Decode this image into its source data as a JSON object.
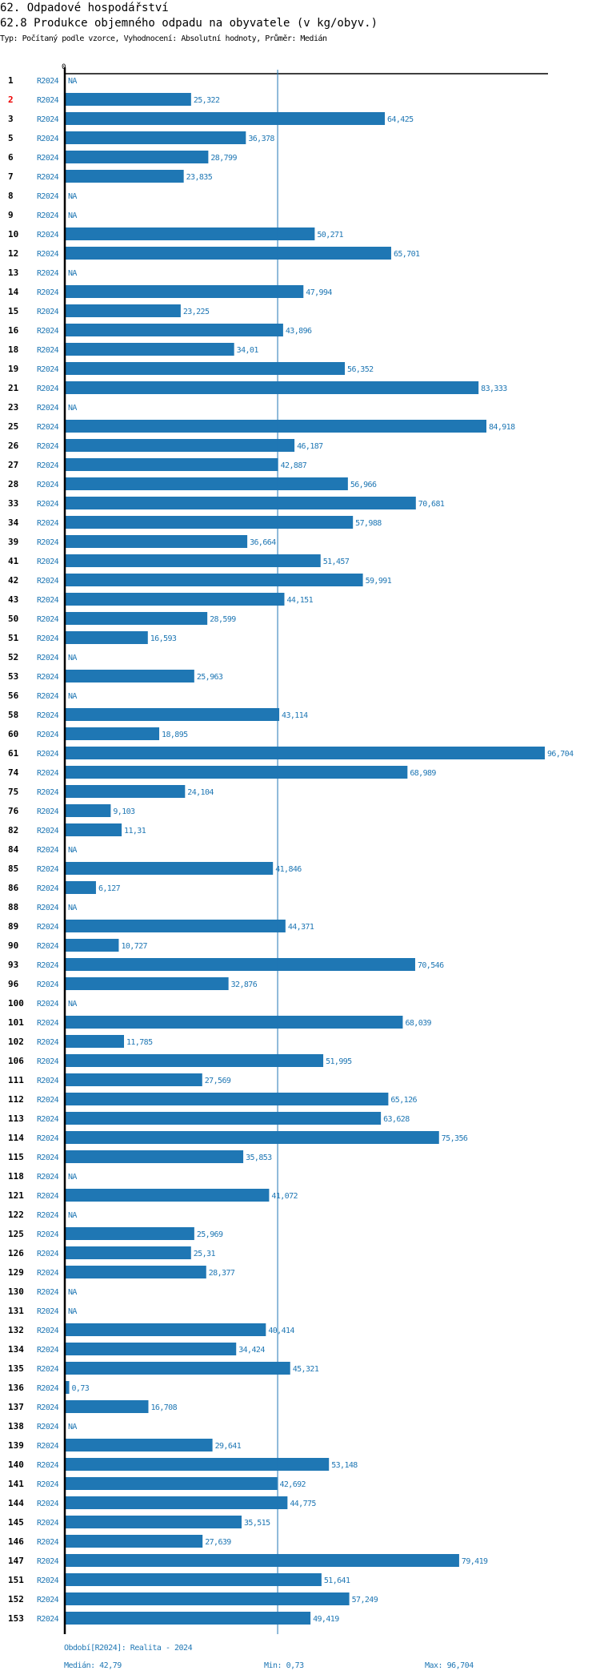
{
  "header": {
    "section_title": "62. Odpadové hospodářství",
    "chart_title": "62.8 Produkce objemného odpadu na obyvatele (v kg/obyv.)",
    "subtitle": "Typ: Počítaný podle vzorce, Vyhodnocení: Absolutní hodnoty, Průměr: Medián"
  },
  "colors": {
    "bar": "#1f77b4",
    "highlight_label": "#ee0000",
    "axis": "#000000",
    "median_line": "#1f77b4"
  },
  "chart_data": {
    "type": "bar",
    "orientation": "horizontal",
    "title": "62.8 Produkce objemného odpadu na obyvatele (v kg/obyv.)",
    "xlabel": "",
    "ylabel": "",
    "x_tick_labels": [
      "0"
    ],
    "xlim": [
      0,
      96.704
    ],
    "grid": false,
    "legend": "none",
    "period_label": "R2024",
    "highlighted_category": "2",
    "median": 42.79,
    "categories": [
      "1",
      "2",
      "3",
      "5",
      "6",
      "7",
      "8",
      "9",
      "10",
      "12",
      "13",
      "14",
      "15",
      "16",
      "18",
      "19",
      "21",
      "23",
      "25",
      "26",
      "27",
      "28",
      "33",
      "34",
      "39",
      "41",
      "42",
      "43",
      "50",
      "51",
      "52",
      "53",
      "56",
      "58",
      "60",
      "61",
      "74",
      "75",
      "76",
      "82",
      "84",
      "85",
      "86",
      "88",
      "89",
      "90",
      "93",
      "96",
      "100",
      "101",
      "102",
      "106",
      "111",
      "112",
      "113",
      "114",
      "115",
      "118",
      "121",
      "122",
      "125",
      "126",
      "129",
      "130",
      "131",
      "132",
      "134",
      "135",
      "136",
      "137",
      "138",
      "139",
      "140",
      "141",
      "144",
      "145",
      "146",
      "147",
      "151",
      "152",
      "153"
    ],
    "values": [
      null,
      25.322,
      64.425,
      36.378,
      28.799,
      23.835,
      null,
      null,
      50.271,
      65.701,
      null,
      47.994,
      23.225,
      43.896,
      34.01,
      56.352,
      83.333,
      null,
      84.918,
      46.187,
      42.887,
      56.966,
      70.681,
      57.988,
      36.664,
      51.457,
      59.991,
      44.151,
      28.599,
      16.593,
      null,
      25.963,
      null,
      43.114,
      18.895,
      96.704,
      68.989,
      24.104,
      9.103,
      11.31,
      null,
      41.846,
      6.127,
      null,
      44.371,
      10.727,
      70.546,
      32.876,
      null,
      68.039,
      11.785,
      51.995,
      27.569,
      65.126,
      63.628,
      75.356,
      35.853,
      null,
      41.072,
      null,
      25.969,
      25.31,
      28.377,
      null,
      null,
      40.414,
      34.424,
      45.321,
      0.73,
      16.708,
      null,
      29.641,
      53.148,
      42.692,
      44.775,
      35.515,
      27.639,
      79.419,
      51.641,
      57.249,
      49.419
    ],
    "value_labels": [
      "NA",
      "25,322",
      "64,425",
      "36,378",
      "28,799",
      "23,835",
      "NA",
      "NA",
      "50,271",
      "65,701",
      "NA",
      "47,994",
      "23,225",
      "43,896",
      "34,01",
      "56,352",
      "83,333",
      "NA",
      "84,918",
      "46,187",
      "42,887",
      "56,966",
      "70,681",
      "57,988",
      "36,664",
      "51,457",
      "59,991",
      "44,151",
      "28,599",
      "16,593",
      "NA",
      "25,963",
      "NA",
      "43,114",
      "18,895",
      "96,704",
      "68,989",
      "24,104",
      "9,103",
      "11,31",
      "NA",
      "41,846",
      "6,127",
      "NA",
      "44,371",
      "10,727",
      "70,546",
      "32,876",
      "NA",
      "68,039",
      "11,785",
      "51,995",
      "27,569",
      "65,126",
      "63,628",
      "75,356",
      "35,853",
      "NA",
      "41,072",
      "NA",
      "25,969",
      "25,31",
      "28,377",
      "NA",
      "NA",
      "40,414",
      "34,424",
      "45,321",
      "0,73",
      "16,708",
      "NA",
      "29,641",
      "53,148",
      "42,692",
      "44,775",
      "35,515",
      "27,639",
      "79,419",
      "51,641",
      "57,249",
      "49,419"
    ]
  },
  "footer": {
    "period_note": "Období[R2024]: Realita - 2024",
    "median_label": "Medián: 42,79",
    "min_label": "Min: 0,73",
    "max_label": "Max: 96,704"
  }
}
